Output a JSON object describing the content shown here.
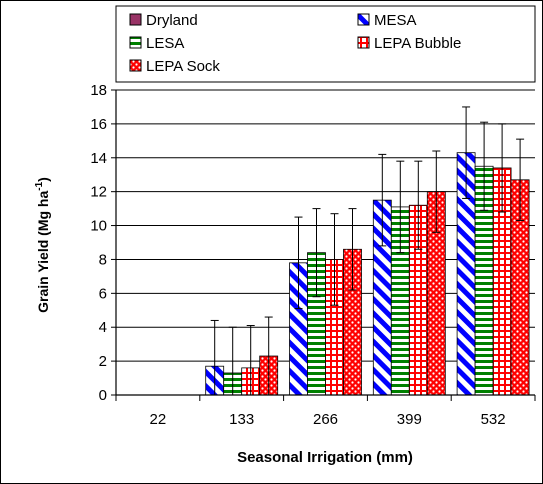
{
  "chart_data": {
    "type": "bar",
    "categories": [
      "22",
      "133",
      "266",
      "399",
      "532"
    ],
    "series": [
      {
        "name": "Dryland",
        "pattern": "solid",
        "color": "#993366",
        "values": [
          0,
          0,
          0,
          0,
          0
        ],
        "error": [
          0,
          0,
          0,
          0,
          0
        ]
      },
      {
        "name": "MESA",
        "pattern": "diagonal",
        "color": "#0000ff",
        "values": [
          0,
          1.7,
          7.8,
          11.5,
          14.3
        ],
        "error": [
          0,
          2.7,
          2.7,
          2.7,
          2.7
        ]
      },
      {
        "name": "LESA",
        "pattern": "horizontal",
        "color": "#008000",
        "values": [
          0,
          1.3,
          8.4,
          11.1,
          13.5
        ],
        "error": [
          0,
          2.7,
          2.6,
          2.7,
          2.6
        ]
      },
      {
        "name": "LEPA Bubble",
        "pattern": "grid",
        "color": "#ff0000",
        "values": [
          0,
          1.6,
          8.0,
          11.2,
          13.4
        ],
        "error": [
          0,
          2.5,
          2.7,
          2.6,
          2.6
        ]
      },
      {
        "name": "LEPA Sock",
        "pattern": "dots",
        "color": "#ff0000",
        "values": [
          0,
          2.3,
          8.6,
          12.0,
          12.7
        ],
        "error": [
          0,
          2.3,
          2.4,
          2.4,
          2.4
        ]
      }
    ],
    "xlabel": "Seasonal Irrigation  (mm)",
    "ylabel_main": "Grain Yield (Mg ha",
    "ylabel_sup": "-1",
    "ylabel_close": ")",
    "ylim": [
      0,
      18
    ],
    "yticks": [
      "0",
      "2",
      "4",
      "6",
      "8",
      "10",
      "12",
      "14",
      "16",
      "18"
    ],
    "grid": true,
    "legend_position": "top"
  }
}
